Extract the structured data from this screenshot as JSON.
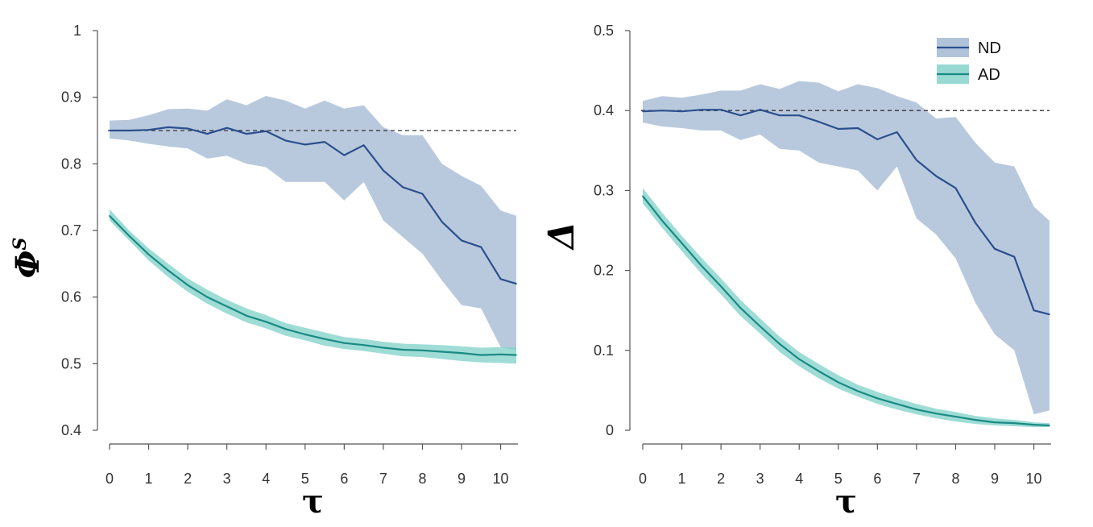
{
  "colors": {
    "nd_band": "#a9bdd6",
    "nd_line": "#2b4f8e",
    "ad_band": "#7fd0c8",
    "ad_line": "#1a8a84",
    "reference": "#333333"
  },
  "legend": {
    "position": "top-right",
    "items": [
      "ND",
      "AD"
    ]
  },
  "chart_data": [
    {
      "type": "line",
      "xlabel": "τ",
      "ylabel": "Φ",
      "ylabel_superscript": "S",
      "xlim": [
        0,
        10.4
      ],
      "ylim": [
        0.4,
        1.0
      ],
      "xticks": [
        "0",
        "1",
        "2",
        "3",
        "4",
        "5",
        "6",
        "7",
        "8",
        "9",
        "10"
      ],
      "yticks": [
        "0.4",
        "0.5",
        "0.6",
        "0.7",
        "0.8",
        "0.9",
        "1"
      ],
      "reference_line": 0.85,
      "x": [
        0,
        0.5,
        1,
        1.5,
        2,
        2.5,
        3,
        3.5,
        4,
        4.5,
        5,
        5.5,
        6,
        6.5,
        7,
        7.5,
        8,
        8.5,
        9,
        9.5,
        10,
        10.4
      ],
      "series": [
        {
          "name": "ND",
          "values": [
            0.85,
            0.85,
            0.851,
            0.855,
            0.853,
            0.845,
            0.854,
            0.845,
            0.849,
            0.835,
            0.829,
            0.833,
            0.813,
            0.828,
            0.79,
            0.765,
            0.755,
            0.713,
            0.685,
            0.675,
            0.627,
            0.62
          ],
          "lower": [
            0.838,
            0.835,
            0.83,
            0.826,
            0.823,
            0.808,
            0.812,
            0.8,
            0.795,
            0.773,
            0.773,
            0.773,
            0.745,
            0.773,
            0.715,
            0.69,
            0.665,
            0.625,
            0.588,
            0.583,
            0.525,
            0.52
          ],
          "upper": [
            0.865,
            0.866,
            0.873,
            0.882,
            0.883,
            0.88,
            0.897,
            0.888,
            0.902,
            0.895,
            0.883,
            0.895,
            0.883,
            0.888,
            0.855,
            0.843,
            0.843,
            0.8,
            0.782,
            0.767,
            0.73,
            0.722
          ]
        },
        {
          "name": "AD",
          "values": [
            0.722,
            0.692,
            0.664,
            0.64,
            0.618,
            0.6,
            0.586,
            0.572,
            0.563,
            0.552,
            0.544,
            0.537,
            0.531,
            0.528,
            0.524,
            0.521,
            0.52,
            0.518,
            0.516,
            0.513,
            0.514,
            0.513
          ],
          "lower": [
            0.715,
            0.685,
            0.655,
            0.63,
            0.608,
            0.59,
            0.575,
            0.562,
            0.553,
            0.542,
            0.535,
            0.527,
            0.522,
            0.519,
            0.515,
            0.511,
            0.51,
            0.507,
            0.504,
            0.502,
            0.501,
            0.5
          ],
          "upper": [
            0.732,
            0.7,
            0.673,
            0.65,
            0.628,
            0.611,
            0.596,
            0.583,
            0.573,
            0.561,
            0.554,
            0.547,
            0.54,
            0.537,
            0.533,
            0.53,
            0.529,
            0.528,
            0.526,
            0.524,
            0.525,
            0.524
          ]
        }
      ]
    },
    {
      "type": "line",
      "xlabel": "τ",
      "ylabel": "Δ",
      "xlim": [
        0,
        10.4
      ],
      "ylim": [
        0,
        0.5
      ],
      "xticks": [
        "0",
        "1",
        "2",
        "3",
        "4",
        "5",
        "6",
        "7",
        "8",
        "9",
        "10"
      ],
      "yticks": [
        "0",
        "0.1",
        "0.2",
        "0.3",
        "0.4",
        "0.5"
      ],
      "reference_line": 0.4,
      "x": [
        0,
        0.5,
        1,
        1.5,
        2,
        2.5,
        3,
        3.5,
        4,
        4.5,
        5,
        5.5,
        6,
        6.5,
        7,
        7.5,
        8,
        8.5,
        9,
        9.5,
        10,
        10.4
      ],
      "series": [
        {
          "name": "ND",
          "values": [
            0.399,
            0.4,
            0.399,
            0.401,
            0.401,
            0.394,
            0.401,
            0.394,
            0.394,
            0.386,
            0.377,
            0.378,
            0.364,
            0.373,
            0.338,
            0.318,
            0.303,
            0.26,
            0.227,
            0.217,
            0.15,
            0.145
          ],
          "lower": [
            0.385,
            0.38,
            0.378,
            0.375,
            0.375,
            0.363,
            0.37,
            0.352,
            0.35,
            0.335,
            0.33,
            0.325,
            0.3,
            0.33,
            0.265,
            0.245,
            0.215,
            0.16,
            0.12,
            0.1,
            0.02,
            0.025
          ],
          "upper": [
            0.412,
            0.418,
            0.416,
            0.42,
            0.425,
            0.425,
            0.433,
            0.427,
            0.437,
            0.435,
            0.424,
            0.433,
            0.428,
            0.418,
            0.41,
            0.39,
            0.392,
            0.36,
            0.335,
            0.33,
            0.28,
            0.262
          ]
        },
        {
          "name": "AD",
          "values": [
            0.293,
            0.262,
            0.234,
            0.206,
            0.18,
            0.153,
            0.13,
            0.108,
            0.089,
            0.074,
            0.06,
            0.049,
            0.04,
            0.033,
            0.026,
            0.021,
            0.017,
            0.013,
            0.01,
            0.009,
            0.007,
            0.006
          ],
          "lower": [
            0.284,
            0.253,
            0.224,
            0.196,
            0.17,
            0.143,
            0.121,
            0.098,
            0.08,
            0.065,
            0.052,
            0.042,
            0.033,
            0.026,
            0.02,
            0.015,
            0.011,
            0.008,
            0.006,
            0.005,
            0.004,
            0.004
          ],
          "upper": [
            0.303,
            0.272,
            0.243,
            0.216,
            0.19,
            0.163,
            0.14,
            0.117,
            0.098,
            0.083,
            0.069,
            0.057,
            0.048,
            0.04,
            0.033,
            0.027,
            0.023,
            0.018,
            0.015,
            0.013,
            0.01,
            0.009
          ]
        }
      ]
    }
  ]
}
